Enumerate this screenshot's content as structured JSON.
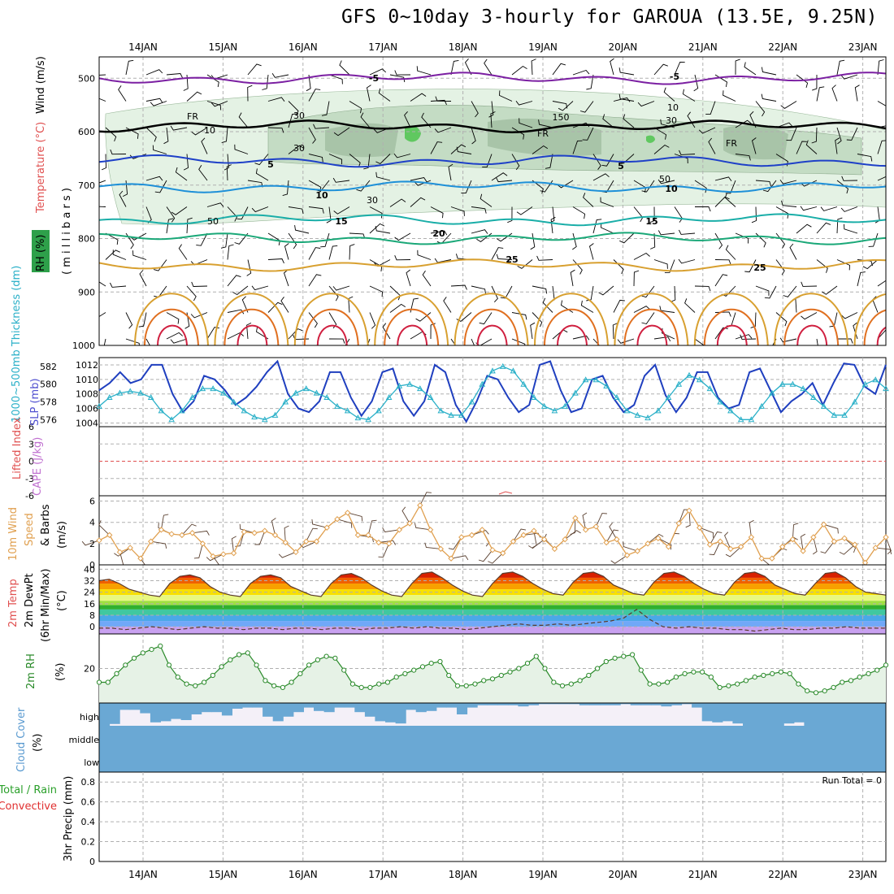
{
  "title": "GFS 0~10day 3-hourly for GAROUA (13.5E, 9.25N)",
  "days": [
    "14JAN",
    "15JAN",
    "16JAN",
    "17JAN",
    "18JAN",
    "19JAN",
    "20JAN",
    "21JAN",
    "22JAN",
    "23JAN"
  ],
  "run_total_label": "Run Total = 0",
  "colors": {
    "temp_lines": [
      "#7b1fa2",
      "#1e40c8",
      "#1e90d8",
      "#1aaea8",
      "#1aa878",
      "#d8a030",
      "#e07020",
      "#d02040"
    ],
    "slp": "#1f3fbf",
    "thickness": "#2ab0c8",
    "wind10": "#e0a050",
    "rh2m": "#2a8a2a",
    "cloud": "#6aa8d4",
    "freezing": "#000000"
  },
  "panel_labels": {
    "upper": {
      "wind": "Wind (m/s)",
      "temp": "Temperature (°C)",
      "rh": "RH (%)",
      "units": "( m i l l i b a r s )"
    },
    "slp": {
      "slp": "SLP (mb)",
      "thk": "1000~500mb Thickness (dm)"
    },
    "cape": {
      "cape": "CAPE (J/kg)",
      "li": "Lifted Index"
    },
    "wind10": {
      "a": "10m Wind",
      "b": "Speed",
      "c": "& Barbs",
      "u": "(m/s)"
    },
    "temp2m": {
      "a": "2m Temp",
      "b": "2m DewPt",
      "c": "(6hr Min/Max)",
      "u": "(°C)"
    },
    "rh2m": {
      "a": "2m RH",
      "u": "(%)"
    },
    "cloud": {
      "a": "Cloud Cover",
      "u": "(%)",
      "levels": [
        "high",
        "middle",
        "low"
      ]
    },
    "precip": {
      "a": "3hr Precip (mm)",
      "b": "Total / Rain",
      "c": "Convective"
    }
  },
  "chart_data": [
    {
      "type": "line",
      "title": "Upper-air cross section",
      "ylabel": "millibars",
      "y_ticks": [
        500,
        600,
        700,
        800,
        900,
        1000
      ],
      "ylim": [
        460,
        1000
      ],
      "isotherm_labels": [
        "-5",
        "-5",
        "FR",
        "FR",
        "FR",
        "5",
        "5",
        "10",
        "10",
        "15",
        "15",
        "20",
        "25",
        "25"
      ],
      "rh_labels": [
        "10",
        "30",
        "30",
        "50",
        "30",
        "50",
        "150",
        "30",
        "10"
      ],
      "series": [
        {
          "name": "-5",
          "base": 500
        },
        {
          "name": "FR",
          "base": 590
        },
        {
          "name": "5",
          "base": 655
        },
        {
          "name": "10",
          "base": 703
        },
        {
          "name": "15",
          "base": 765
        },
        {
          "name": "20",
          "base": 800
        },
        {
          "name": "25",
          "base": 850
        }
      ]
    },
    {
      "type": "line",
      "title": "SLP and 1000-500mb thickness",
      "slp_ticks": [
        1004,
        1006,
        1008,
        1010,
        1012
      ],
      "thickness_ticks": [
        576,
        578,
        580,
        582
      ],
      "slp_ylim": [
        1003.5,
        1013
      ],
      "thickness_ylim": [
        575.2,
        583
      ],
      "slp": [
        1008.5,
        1009.5,
        1011,
        1009.5,
        1010,
        1012,
        1012,
        1008,
        1005.5,
        1007,
        1010.5,
        1010,
        1008.5,
        1006.5,
        1007.5,
        1009,
        1011,
        1012.5,
        1008,
        1006,
        1005.5,
        1007,
        1011,
        1011,
        1007.5,
        1005,
        1007,
        1011,
        1011.5,
        1007,
        1005,
        1007,
        1012,
        1011,
        1006.5,
        1004.2,
        1007,
        1010.5,
        1010,
        1007.5,
        1005.5,
        1006.5,
        1012,
        1012.5,
        1008.5,
        1005.5,
        1006,
        1010,
        1010.5,
        1007.5,
        1005.5,
        1006.5,
        1010.5,
        1012,
        1007.8,
        1005.5,
        1007.5,
        1011,
        1011,
        1007.5,
        1006,
        1006.5,
        1011,
        1011.5,
        1008.5,
        1005.5,
        1007,
        1008,
        1009.5,
        1006.5,
        1009.5,
        1012.2,
        1012,
        1009,
        1008,
        1012
      ],
      "thickness": [
        577.5,
        578.5,
        579,
        579.2,
        579,
        578.5,
        577,
        576,
        577,
        578.5,
        579.5,
        579.5,
        579,
        578,
        577,
        576.3,
        576,
        576.5,
        578,
        579,
        579.5,
        579,
        578.5,
        577.5,
        577,
        576.2,
        576,
        577,
        578.5,
        579.8,
        580,
        579.5,
        578.5,
        577,
        576.5,
        576.5,
        578,
        580,
        581.5,
        582,
        581.5,
        580,
        578.5,
        577.5,
        577,
        577.5,
        579,
        580.5,
        580.5,
        579.8,
        578.5,
        577,
        576.5,
        576.2,
        577,
        578.5,
        580,
        581,
        580.5,
        579.5,
        578,
        577,
        576,
        576,
        577.5,
        579,
        580,
        580,
        579.5,
        578.5,
        577.5,
        576.5,
        576.5,
        578,
        580,
        580.5,
        579.5
      ]
    },
    {
      "type": "line",
      "title": "CAPE and Lifted Index",
      "ticks": [
        6,
        3,
        0,
        -3,
        -6
      ],
      "tick_labels": [
        "-6",
        "-3",
        "0",
        "3",
        "6"
      ],
      "ylim": [
        -6,
        6
      ],
      "lifted_index_zero": 0
    },
    {
      "type": "line",
      "title": "10m Wind Speed & Barbs",
      "ticks": [
        0,
        2,
        4,
        6
      ],
      "ylim": [
        0,
        6.5
      ],
      "values": [
        2.3,
        2.8,
        1.2,
        1.6,
        0.6,
        2.2,
        3.3,
        2.9,
        2.8,
        3,
        2,
        0.8,
        1,
        1.1,
        3.1,
        3,
        3.2,
        2.8,
        2.1,
        1.2,
        2.2,
        2.2,
        3.5,
        4.3,
        4.9,
        2.8,
        2.8,
        2.1,
        2,
        3.3,
        3.9,
        5.6,
        3.3,
        1.5,
        0.6,
        2.6,
        2.8,
        3.3,
        1.4,
        1.1,
        2.2,
        2.8,
        3.2,
        2.4,
        1.5,
        2.4,
        4.4,
        3.3,
        3.6,
        2.1,
        2.4,
        0.9,
        1.3,
        2,
        2.5,
        1.7,
        3.9,
        5.1,
        3.5,
        1.9,
        2.2,
        1.5,
        1.7,
        2.6,
        0.6,
        0.6,
        1.7,
        2.4,
        1.3,
        2.6,
        3.8,
        2.2,
        2.5,
        1.9,
        0.2,
        1.6,
        2.6
      ]
    },
    {
      "type": "area",
      "title": "2m Temp / DewPt",
      "ticks": [
        0,
        8,
        16,
        24,
        32,
        40
      ],
      "ylim": [
        -5,
        43
      ],
      "temp": [
        32,
        33,
        30,
        26,
        24,
        22,
        21,
        30,
        35,
        36,
        34,
        28,
        24,
        22,
        21,
        30,
        35,
        36,
        34,
        28,
        25,
        22,
        21,
        30,
        36,
        37,
        34,
        29,
        25,
        22,
        21,
        30,
        37,
        38,
        34,
        29,
        25,
        22,
        21,
        30,
        37,
        38,
        35,
        30,
        26,
        23,
        22,
        31,
        37,
        38,
        35,
        29,
        26,
        23,
        22,
        31,
        37,
        38,
        35,
        30,
        26,
        23,
        22,
        31,
        37,
        38,
        35,
        29,
        26,
        23,
        22,
        30,
        37,
        38,
        34,
        28,
        24,
        23,
        22
      ],
      "dewpoint": [
        -1,
        -1,
        -2,
        -1,
        0,
        -1,
        -2,
        -1,
        0,
        -1,
        -1,
        -2,
        -1,
        -1,
        -2,
        -1,
        -1,
        -2,
        -1,
        -1,
        -2,
        -1,
        -1,
        0,
        -1,
        0,
        -1,
        -1,
        -2,
        -1,
        0,
        1,
        2,
        1,
        1,
        2,
        1,
        2,
        3,
        4,
        6,
        12,
        5,
        0,
        -1,
        0,
        -1,
        -1,
        -2,
        -2,
        -3,
        -2,
        -1,
        -2,
        -2,
        -1,
        -1,
        0,
        -1,
        -1,
        -1
      ]
    },
    {
      "type": "area",
      "title": "2m RH",
      "ticks": [
        20
      ],
      "ylim": [
        0,
        40
      ],
      "values": [
        12,
        12,
        17,
        22,
        26,
        29,
        31,
        33,
        22,
        15,
        11,
        10,
        12,
        16,
        21,
        25,
        28,
        29,
        22,
        13,
        10,
        9,
        12,
        17,
        22,
        25,
        27,
        26,
        19,
        11,
        9,
        9,
        11,
        12,
        15,
        17,
        19,
        21,
        23,
        24,
        16,
        10,
        10,
        11,
        13,
        14,
        16,
        18,
        20,
        23,
        27,
        20,
        12,
        10,
        11,
        13,
        16,
        20,
        24,
        26,
        27,
        28,
        19,
        11,
        11,
        12,
        15,
        17,
        18,
        18,
        15,
        9,
        10,
        11,
        13,
        15,
        16,
        17,
        18,
        17,
        11,
        7,
        6,
        7,
        9,
        12,
        13,
        15,
        17,
        19,
        22
      ]
    },
    {
      "type": "bar",
      "title": "Cloud Cover",
      "categories": [
        "high",
        "middle",
        "low"
      ],
      "high": [
        100,
        92,
        30,
        30,
        45,
        85,
        80,
        70,
        75,
        50,
        40,
        40,
        55,
        25,
        20,
        20,
        60,
        80,
        60,
        40,
        20,
        35,
        40,
        20,
        20,
        40,
        60,
        80,
        85,
        90,
        30,
        40,
        35,
        20,
        20,
        50,
        20,
        10,
        10,
        10,
        10,
        15,
        10,
        5,
        5,
        5,
        5,
        10,
        10,
        10,
        10,
        5,
        10,
        10,
        10,
        15,
        10,
        5,
        20,
        80,
        85,
        80,
        90,
        100,
        100,
        100,
        100,
        90,
        85,
        100,
        100,
        100,
        100,
        100,
        100,
        100,
        100
      ],
      "middle": [
        100
      ],
      "low": [
        100
      ]
    },
    {
      "type": "line",
      "title": "3hr Precip (mm)",
      "ticks": [
        0,
        0.2,
        0.4,
        0.6,
        0.8
      ],
      "ylim": [
        0,
        0.9
      ],
      "values": []
    }
  ]
}
